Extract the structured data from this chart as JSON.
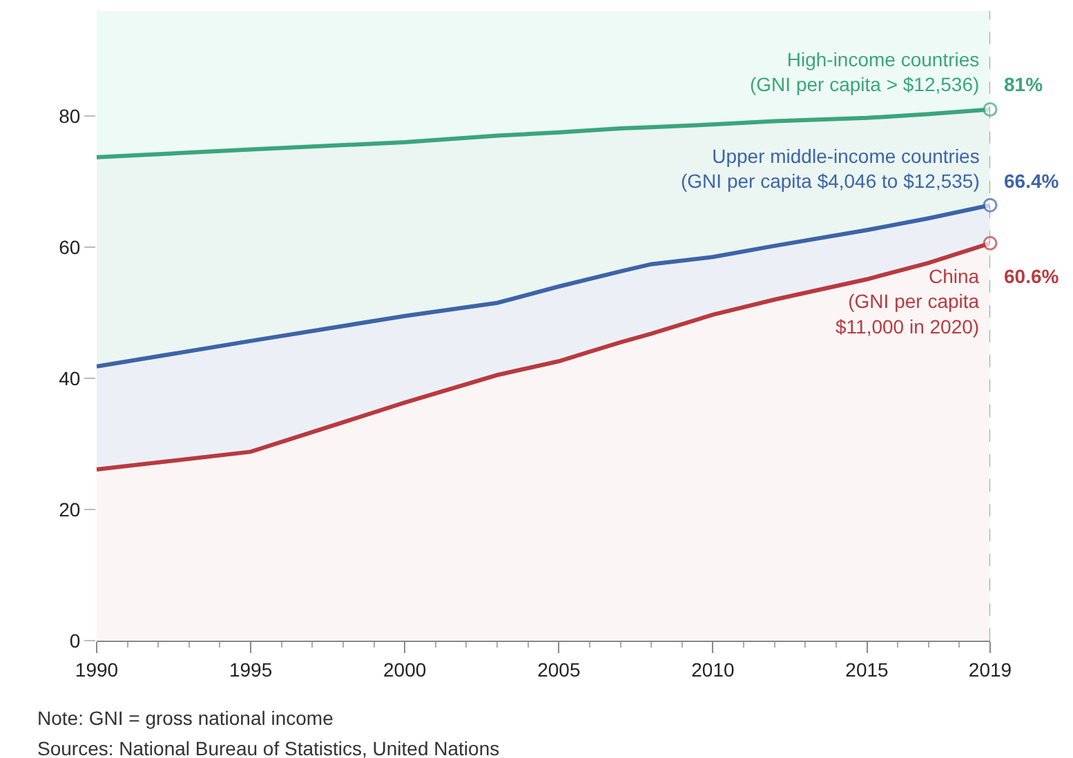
{
  "chart_data": {
    "type": "area",
    "x": [
      1990,
      1995,
      2000,
      2003,
      2005,
      2007,
      2008,
      2010,
      2012,
      2015,
      2017,
      2019
    ],
    "series": [
      {
        "name": "China\n(GNI per capita\n$11,000 in 2020)",
        "color": "#b83a3f",
        "values": [
          26.1,
          28.8,
          36.3,
          40.5,
          42.6,
          45.5,
          46.8,
          49.7,
          52.0,
          55.1,
          57.6,
          60.6
        ],
        "value_labels": [
          null,
          null,
          null,
          null,
          null,
          null,
          null,
          null,
          null,
          null,
          null,
          "60.6%"
        ]
      },
      {
        "name": "Upper middle-income countries\n(GNI per capita $4,046 to $12,535)",
        "color": "#3d64a8",
        "values": [
          41.8,
          45.7,
          49.5,
          51.5,
          54.0,
          56.3,
          57.4,
          58.5,
          60.2,
          62.6,
          64.4,
          66.4
        ],
        "value_labels": [
          null,
          null,
          null,
          null,
          null,
          null,
          null,
          null,
          null,
          null,
          null,
          "66.4%"
        ]
      },
      {
        "name": "High-income countries\n(GNI per capita > $12,536)",
        "color": "#3aa57e",
        "values": [
          73.7,
          74.9,
          76.0,
          77.0,
          77.5,
          78.1,
          78.3,
          78.7,
          79.2,
          79.7,
          80.3,
          81.0
        ],
        "value_labels": [
          null,
          null,
          null,
          null,
          null,
          null,
          null,
          null,
          null,
          null,
          null,
          "81%"
        ]
      }
    ],
    "xlim": [
      1990,
      2019
    ],
    "xticks": [
      1990,
      1995,
      2000,
      2005,
      2010,
      2015,
      2019
    ],
    "ylim": [
      0,
      96
    ],
    "yticks": [
      0,
      20,
      40,
      60,
      80
    ],
    "grid": false,
    "legend": false,
    "line_style": "solid",
    "ref_lines": [
      {
        "axis": "x",
        "value": 2019,
        "line_style": "dashed",
        "color": "#999999"
      }
    ],
    "annotations": [
      "Note: GNI = gross national income",
      "Sources: National Bureau of Statistics, United Nations"
    ]
  }
}
